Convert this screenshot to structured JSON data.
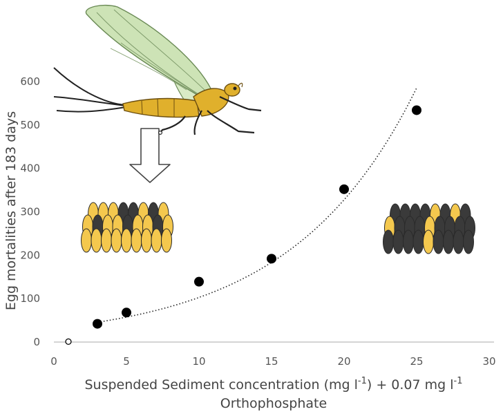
{
  "chart_data": {
    "type": "scatter",
    "title": "",
    "ylabel": "Egg mortalities after 183 days",
    "xlabel_parts": {
      "main": "Suspended Sediment concentration (mg l",
      "sup1": "-1",
      "mid": ") + 0.07 mg l",
      "sup2": "-1",
      "line2": "Orthophosphate"
    },
    "xlim": [
      0,
      30
    ],
    "ylim": [
      0,
      600
    ],
    "x_ticks": [
      0,
      5,
      10,
      15,
      20,
      25,
      30
    ],
    "y_ticks": [
      0,
      100,
      200,
      300,
      400,
      500,
      600
    ],
    "grid": false,
    "series": [
      {
        "marker": "filled-circle",
        "color": "#000000",
        "points": [
          {
            "x": 3,
            "y": 42
          },
          {
            "x": 5,
            "y": 68
          },
          {
            "x": 10,
            "y": 139
          },
          {
            "x": 15,
            "y": 192
          },
          {
            "x": 20,
            "y": 352
          },
          {
            "x": 25,
            "y": 534
          }
        ]
      },
      {
        "marker": "open-circle",
        "color": "#000000",
        "points": [
          {
            "x": 1,
            "y": 1
          }
        ]
      }
    ],
    "trendline": {
      "style": "dotted",
      "kind": "exponential",
      "x_range": [
        3,
        25
      ],
      "a": 32.2,
      "b": 0.116
    },
    "illustrations": [
      "mayfly-illustration",
      "down-arrow",
      "mostly-yellow-egg-cluster",
      "mostly-dark-egg-cluster"
    ],
    "colors": {
      "egg_alive": "#F4C84E",
      "egg_dead": "#3A3A3A",
      "wing": "#CDE3B6",
      "body": "#E0B02C",
      "axis": "#bbbbbb"
    }
  }
}
